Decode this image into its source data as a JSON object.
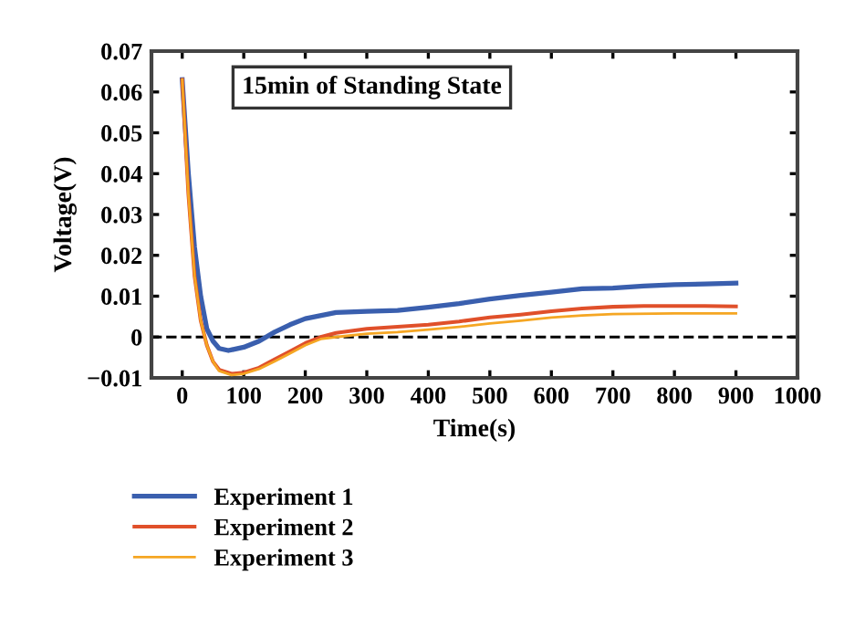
{
  "chart_data": {
    "type": "line",
    "xlabel": "Time(s)",
    "ylabel": "Voltage(V)",
    "annotations": [
      "15min of Standing State"
    ],
    "xlim": [
      -50,
      1000
    ],
    "xticks": [
      0,
      100,
      200,
      300,
      400,
      500,
      600,
      700,
      800,
      900,
      1000
    ],
    "ylim": [
      -0.01,
      0.07
    ],
    "yticks": [
      {
        "value": -0.01,
        "label": "−0.01"
      },
      0,
      0.01,
      0.02,
      0.03,
      0.04,
      0.05,
      0.06,
      0.07
    ],
    "ref_lines": [
      {
        "axis": "y",
        "value": 0,
        "color": "#000000",
        "line_style": "dashed"
      }
    ],
    "legend": "bottom",
    "grid": false,
    "marker": "none",
    "line_style": "solid",
    "series": [
      {
        "name": "Experiment 1",
        "color": "#3a5fae",
        "x": [
          0,
          10,
          20,
          30,
          40,
          50,
          60,
          75,
          100,
          125,
          150,
          175,
          200,
          250,
          300,
          350,
          400,
          450,
          500,
          550,
          600,
          650,
          700,
          750,
          800,
          850,
          900
        ],
        "values": [
          0.063,
          0.04,
          0.022,
          0.01,
          0.002,
          -0.001,
          -0.0028,
          -0.0033,
          -0.0025,
          -0.001,
          0.0012,
          0.003,
          0.0045,
          0.006,
          0.0063,
          0.0065,
          0.0073,
          0.0082,
          0.0093,
          0.0102,
          0.011,
          0.0118,
          0.012,
          0.0125,
          0.0128,
          0.013,
          0.0132
        ]
      },
      {
        "name": "Experiment 2",
        "color": "#e0502a",
        "x": [
          0,
          10,
          20,
          30,
          40,
          50,
          60,
          80,
          100,
          125,
          150,
          175,
          200,
          225,
          250,
          300,
          350,
          400,
          450,
          500,
          550,
          600,
          650,
          700,
          750,
          800,
          850,
          900
        ],
        "values": [
          0.063,
          0.035,
          0.015,
          0.004,
          -0.002,
          -0.006,
          -0.008,
          -0.009,
          -0.0087,
          -0.0075,
          -0.0055,
          -0.0035,
          -0.0015,
          0.0,
          0.001,
          0.002,
          0.0025,
          0.003,
          0.0038,
          0.0048,
          0.0055,
          0.0063,
          0.007,
          0.0074,
          0.0076,
          0.0076,
          0.0076,
          0.0075
        ]
      },
      {
        "name": "Experiment 3",
        "color": "#f5a623",
        "x": [
          0,
          10,
          20,
          30,
          40,
          50,
          60,
          80,
          100,
          125,
          150,
          175,
          200,
          225,
          250,
          300,
          350,
          400,
          450,
          500,
          550,
          600,
          650,
          700,
          800,
          900
        ],
        "values": [
          0.063,
          0.035,
          0.015,
          0.004,
          -0.002,
          -0.006,
          -0.0083,
          -0.0093,
          -0.009,
          -0.0078,
          -0.006,
          -0.004,
          -0.002,
          -0.0005,
          0.0,
          0.0008,
          0.0012,
          0.0018,
          0.0025,
          0.0033,
          0.004,
          0.0048,
          0.0053,
          0.0056,
          0.0058,
          0.0058
        ]
      }
    ]
  }
}
